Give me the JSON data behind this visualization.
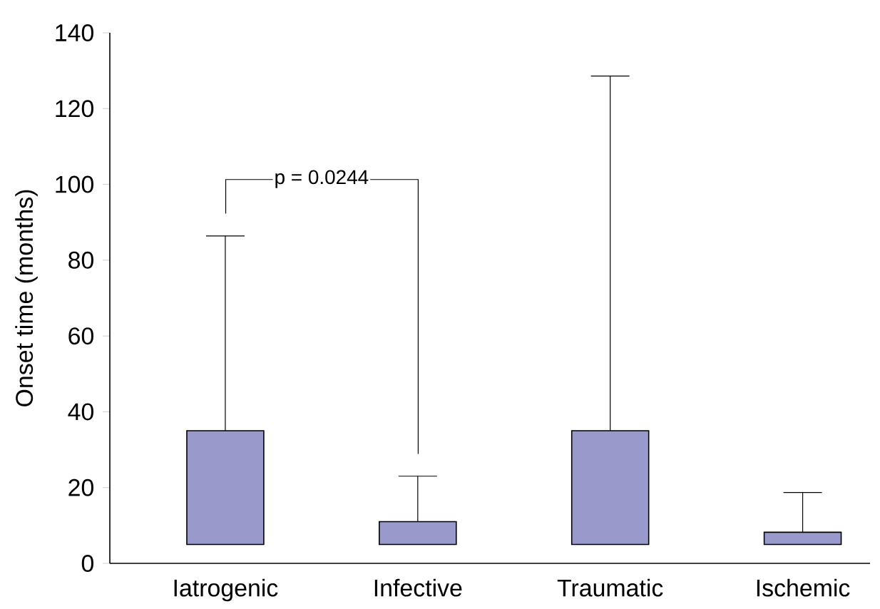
{
  "chart_data": {
    "type": "bar",
    "categories": [
      "Iatrogenic",
      "Infective",
      "Traumatic",
      "Ischemic"
    ],
    "base": [
      5,
      5,
      5,
      5
    ],
    "values": [
      30,
      6,
      30,
      3.2
    ],
    "errors": [
      [
        35,
        86.4
      ],
      [
        11,
        23
      ],
      [
        35,
        128.6
      ],
      [
        8.2,
        18.7
      ]
    ],
    "color": "#9999cc",
    "ylabel": "Onset time (months)",
    "ylim": [
      0,
      140
    ],
    "yticks": [
      0,
      20,
      40,
      60,
      80,
      100,
      120,
      140
    ],
    "annotations": [
      "p = 0.0244"
    ],
    "grid": false
  }
}
